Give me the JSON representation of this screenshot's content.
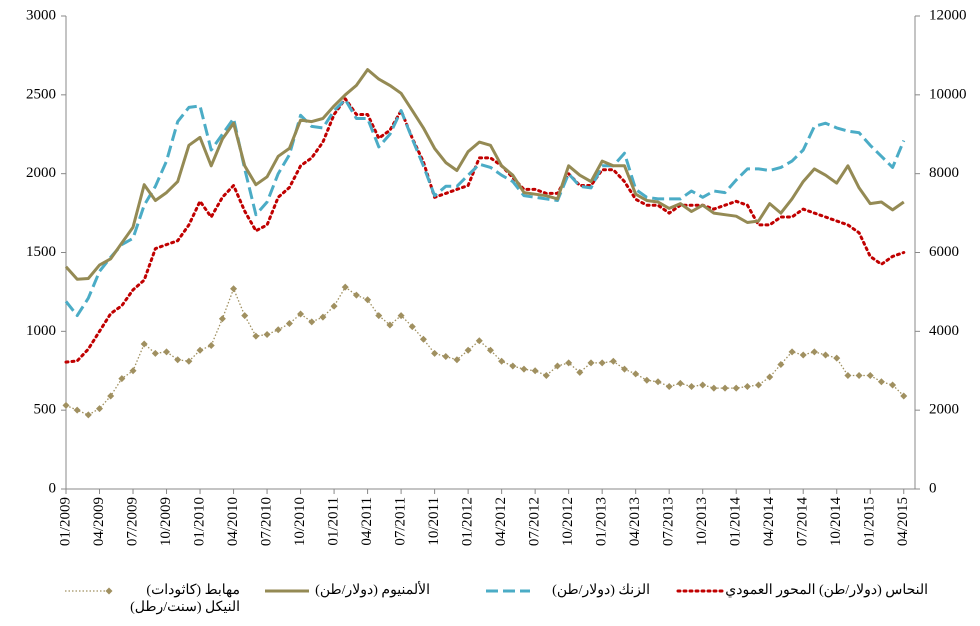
{
  "chart_data": {
    "type": "line",
    "categories": [
      "01/2009",
      null,
      null,
      "04/2009",
      null,
      null,
      "07/2009",
      null,
      null,
      "10/2009",
      null,
      null,
      "01/2010",
      null,
      null,
      "04/2010",
      null,
      null,
      "07/2010",
      null,
      null,
      "10/2010",
      null,
      null,
      "01/2011",
      null,
      null,
      "04/2011",
      null,
      null,
      "07/2011",
      null,
      null,
      "10/2011",
      null,
      null,
      "01/2012",
      null,
      null,
      "04/2012",
      null,
      null,
      "07/2012",
      null,
      null,
      "10/2012",
      null,
      null,
      "01/2013",
      null,
      null,
      "04/2013",
      null,
      null,
      "07/2013",
      null,
      null,
      "10/2013",
      null,
      null,
      "01/2014",
      null,
      null,
      "04/2014",
      null,
      null,
      "07/2014",
      null,
      null,
      "10/2014",
      null,
      null,
      "01/2015",
      null,
      null,
      "04/2015"
    ],
    "series": [
      {
        "name": "النحاس (دولار/طن) المحور العمودي",
        "color": "#c00000",
        "line_style": "dotted",
        "axis": "y2",
        "values": [
          3220,
          3250,
          3550,
          4000,
          4450,
          4650,
          5050,
          5300,
          6100,
          6200,
          6300,
          6700,
          7300,
          6900,
          7400,
          7700,
          7050,
          6550,
          6700,
          7400,
          7650,
          8200,
          8400,
          8800,
          9500,
          9900,
          9500,
          9500,
          8900,
          9100,
          9600,
          8900,
          8300,
          7400,
          7500,
          7600,
          7700,
          8400,
          8400,
          8200,
          7900,
          7600,
          7600,
          7500,
          7500,
          8000,
          7700,
          7700,
          8100,
          8100,
          7800,
          7350,
          7200,
          7200,
          7000,
          7200,
          7200,
          7200,
          7100,
          7200,
          7300,
          7200,
          6700,
          6700,
          6900,
          6900,
          7100,
          7000,
          6900,
          6800,
          6700,
          6500,
          5900,
          5700,
          5900,
          6000
        ]
      },
      {
        "name": "الزنك (دولار/طن)",
        "color": "#4bacc6",
        "line_style": "dashed",
        "values": [
          1190,
          1100,
          1210,
          1380,
          1470,
          1550,
          1590,
          1800,
          1920,
          2080,
          2330,
          2420,
          2430,
          2150,
          2250,
          2350,
          2030,
          1740,
          1820,
          2000,
          2120,
          2370,
          2300,
          2290,
          2400,
          2470,
          2350,
          2350,
          2170,
          2250,
          2400,
          2220,
          2050,
          1860,
          1920,
          1920,
          1990,
          2060,
          2040,
          1990,
          1950,
          1860,
          1850,
          1840,
          1830,
          2000,
          1920,
          1910,
          2050,
          2050,
          2130,
          1900,
          1850,
          1840,
          1840,
          1840,
          1890,
          1850,
          1890,
          1880,
          1960,
          2030,
          2030,
          2020,
          2040,
          2080,
          2150,
          2300,
          2320,
          2290,
          2270,
          2260,
          2180,
          2110,
          2040,
          2210
        ]
      },
      {
        "name": "الألمنيوم (دولار/طن)",
        "color": "#948a54",
        "line_style": "solid",
        "values": [
          1410,
          1330,
          1335,
          1420,
          1460,
          1560,
          1660,
          1930,
          1830,
          1880,
          1950,
          2180,
          2230,
          2050,
          2220,
          2320,
          2050,
          1930,
          1980,
          2110,
          2160,
          2340,
          2330,
          2350,
          2430,
          2500,
          2560,
          2660,
          2600,
          2560,
          2510,
          2400,
          2290,
          2160,
          2070,
          2020,
          2140,
          2200,
          2180,
          2050,
          1990,
          1880,
          1870,
          1860,
          1840,
          2050,
          1990,
          1950,
          2080,
          2050,
          2050,
          1870,
          1830,
          1820,
          1780,
          1810,
          1760,
          1800,
          1750,
          1740,
          1730,
          1690,
          1700,
          1810,
          1750,
          1840,
          1950,
          2030,
          1990,
          1940,
          2050,
          1910,
          1810,
          1820,
          1770,
          1820
        ]
      },
      {
        "name": "مهابط (كاثودات) النيكل (سنت/رطل)",
        "color": "#a09060",
        "line_style": "dotted",
        "marker": "diamond",
        "values": [
          530,
          500,
          470,
          510,
          590,
          700,
          750,
          920,
          860,
          870,
          820,
          810,
          880,
          910,
          1080,
          1270,
          1100,
          970,
          980,
          1010,
          1050,
          1110,
          1060,
          1090,
          1160,
          1280,
          1230,
          1200,
          1100,
          1040,
          1100,
          1030,
          950,
          860,
          840,
          820,
          880,
          940,
          880,
          810,
          780,
          760,
          750,
          720,
          780,
          800,
          740,
          800,
          800,
          810,
          760,
          730,
          690,
          680,
          650,
          670,
          650,
          660,
          640,
          640,
          640,
          650,
          660,
          710,
          790,
          870,
          850,
          870,
          850,
          830,
          720,
          720,
          720,
          680,
          660,
          590
        ]
      }
    ],
    "ylim": [
      0,
      3000
    ],
    "yticks": [
      0,
      500,
      1000,
      1500,
      2000,
      2500,
      3000
    ],
    "y2lim": [
      0,
      12000
    ],
    "y2ticks": [
      0,
      2000,
      4000,
      6000,
      8000,
      10000,
      12000
    ],
    "grid": false,
    "legend": "bottom"
  }
}
